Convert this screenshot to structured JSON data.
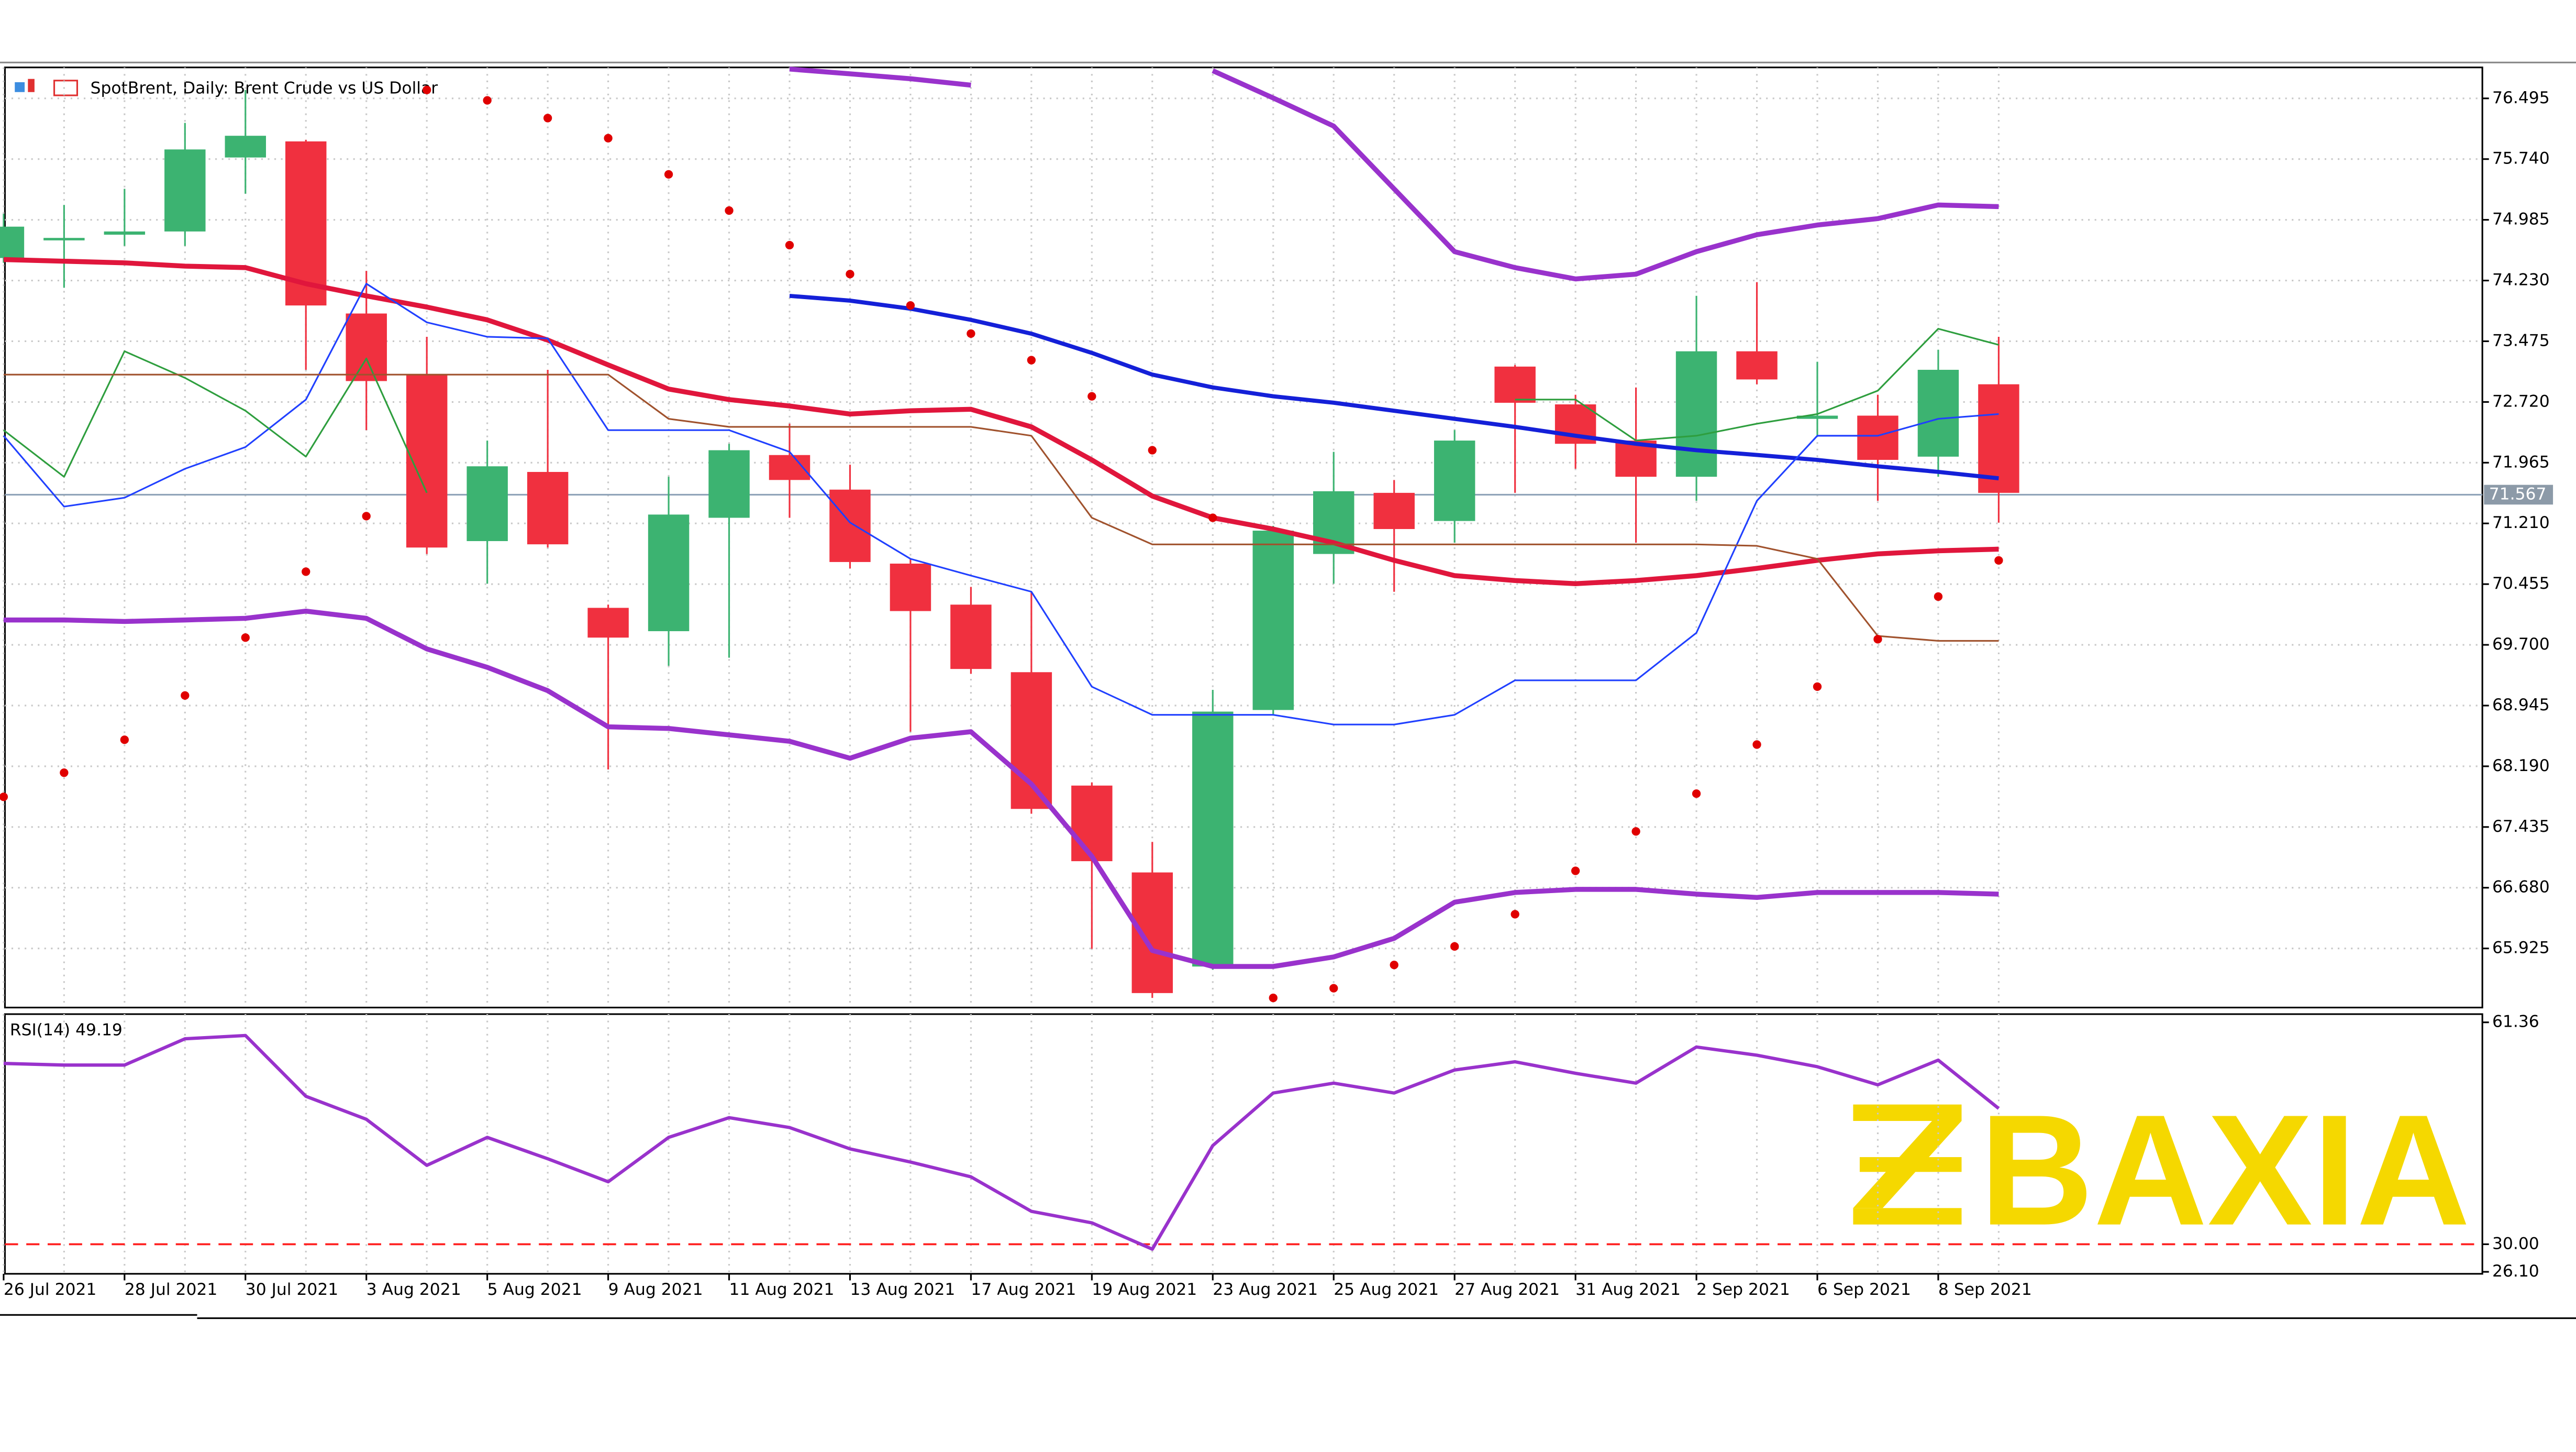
{
  "chart_data": [
    {
      "type": "candlestick",
      "title": "SpotBrent, Daily:  Brent Crude vs US Dollar",
      "categories": [
        "26 Jul 2021",
        null,
        "28 Jul 2021",
        null,
        "30 Jul 2021",
        null,
        "3 Aug 2021",
        null,
        "5 Aug 2021",
        null,
        "9 Aug 2021",
        null,
        "11 Aug 2021",
        null,
        "13 Aug 2021",
        null,
        "17 Aug 2021",
        null,
        "19 Aug 2021",
        null,
        "23 Aug 2021",
        null,
        "25 Aug 2021",
        null,
        "27 Aug 2021",
        null,
        "31 Aug 2021",
        null,
        "2 Sep 2021",
        null,
        "6 Sep 2021",
        null,
        "8 Sep 2021",
        null
      ],
      "open": [
        74.51,
        74.74,
        74.8,
        74.84,
        75.76,
        75.96,
        73.82,
        73.06,
        70.99,
        71.85,
        70.16,
        69.87,
        71.28,
        72.06,
        71.63,
        70.71,
        70.2,
        69.36,
        67.95,
        66.87,
        65.7,
        68.89,
        70.83,
        71.59,
        71.24,
        73.16,
        72.69,
        72.24,
        71.79,
        73.35,
        72.51,
        72.55,
        72.04,
        72.94
      ],
      "high": [
        75.06,
        75.17,
        75.37,
        76.19,
        76.6,
        75.98,
        74.35,
        73.53,
        72.24,
        73.12,
        70.2,
        71.79,
        72.2,
        72.45,
        71.94,
        70.77,
        70.42,
        70.36,
        67.99,
        67.25,
        69.14,
        71.18,
        72.1,
        71.75,
        72.37,
        73.18,
        72.81,
        72.9,
        74.04,
        74.21,
        73.22,
        72.81,
        73.37,
        73.53
      ],
      "low": [
        74.45,
        74.14,
        74.66,
        74.66,
        75.31,
        73.12,
        72.37,
        70.83,
        70.46,
        70.91,
        68.15,
        69.44,
        69.54,
        71.28,
        70.65,
        68.62,
        69.34,
        67.6,
        65.92,
        65.31,
        65.66,
        68.83,
        70.46,
        70.36,
        70.97,
        71.59,
        71.89,
        70.97,
        71.49,
        72.94,
        72.3,
        71.49,
        71.79,
        71.22
      ],
      "close": [
        74.9,
        74.76,
        74.84,
        75.86,
        76.03,
        73.92,
        72.98,
        70.91,
        71.92,
        70.95,
        69.79,
        71.32,
        72.12,
        71.75,
        70.73,
        70.12,
        69.4,
        67.66,
        67.01,
        65.37,
        68.87,
        71.12,
        71.61,
        71.14,
        72.24,
        72.71,
        72.2,
        71.79,
        73.35,
        73.0,
        72.55,
        72.0,
        73.12,
        71.59
      ],
      "up_color": "#3cb371",
      "down_color": "#f0303f",
      "series": [
        {
          "color": "#9932cc",
          "width": 3,
          "values": [
            null,
            null,
            null,
            null,
            null,
            null,
            null,
            null,
            null,
            null,
            null,
            null,
            null,
            76.86,
            76.8,
            76.74,
            76.66,
            null,
            null,
            null,
            76.84,
            76.5,
            76.15,
            75.37,
            74.59,
            74.39,
            74.25,
            74.31,
            74.59,
            74.8,
            74.92,
            75.0,
            75.17,
            75.15
          ]
        },
        {
          "color": "#9932cc",
          "width": 3,
          "values": [
            70.01,
            70.01,
            69.99,
            70.01,
            70.03,
            70.12,
            70.03,
            69.65,
            69.42,
            69.13,
            68.68,
            68.66,
            68.58,
            68.5,
            68.29,
            68.54,
            68.62,
            67.97,
            67.07,
            65.9,
            65.7,
            65.7,
            65.82,
            66.05,
            66.5,
            66.62,
            66.66,
            66.66,
            66.6,
            66.56,
            66.62,
            66.62,
            66.62,
            66.6
          ]
        },
        {
          "color": "#e0163c",
          "width": 3,
          "values": [
            74.49,
            74.47,
            74.45,
            74.41,
            74.39,
            74.19,
            74.04,
            73.9,
            73.74,
            73.49,
            73.18,
            72.88,
            72.75,
            72.67,
            72.57,
            72.61,
            72.63,
            72.41,
            72.0,
            71.55,
            71.28,
            71.14,
            70.97,
            70.75,
            70.56,
            70.5,
            70.46,
            70.5,
            70.56,
            70.65,
            70.75,
            70.83,
            70.87,
            70.89
          ]
        },
        {
          "color": "#1420d8",
          "width": 2.5,
          "values": [
            null,
            null,
            null,
            null,
            null,
            null,
            null,
            null,
            null,
            null,
            null,
            null,
            null,
            74.04,
            73.98,
            73.88,
            73.74,
            73.57,
            73.33,
            73.06,
            72.9,
            72.79,
            72.71,
            72.61,
            72.51,
            72.41,
            72.3,
            72.2,
            72.12,
            72.06,
            72.0,
            71.92,
            71.85,
            71.77
          ]
        },
        {
          "color": "#2040ff",
          "width": 1,
          "values": [
            72.3,
            71.42,
            71.53,
            71.89,
            72.16,
            72.75,
            74.19,
            73.71,
            73.53,
            73.51,
            72.37,
            72.37,
            72.37,
            72.1,
            71.22,
            70.77,
            70.56,
            70.36,
            69.18,
            68.83,
            68.83,
            68.83,
            68.71,
            68.71,
            68.83,
            69.26,
            69.26,
            69.26,
            69.85,
            71.49,
            72.3,
            72.3,
            72.51,
            72.57
          ]
        },
        {
          "color": "#2e9e3e",
          "width": 1,
          "values": [
            72.37,
            71.79,
            73.35,
            73.02,
            72.61,
            72.04,
            73.26,
            71.59,
            null,
            null,
            null,
            null,
            null,
            null,
            null,
            null,
            null,
            null,
            null,
            null,
            null,
            null,
            null,
            null,
            null,
            72.75,
            72.75,
            72.24,
            72.3,
            72.45,
            72.57,
            72.86,
            73.63,
            73.43
          ]
        },
        {
          "color": "#a0522d",
          "width": 1,
          "values": [
            73.06,
            73.06,
            73.06,
            73.06,
            73.06,
            73.06,
            73.06,
            73.06,
            73.06,
            73.06,
            73.06,
            72.51,
            72.41,
            72.41,
            72.41,
            72.41,
            72.41,
            72.3,
            71.28,
            70.95,
            70.95,
            70.95,
            70.95,
            70.95,
            70.95,
            70.95,
            70.95,
            70.95,
            70.95,
            70.93,
            70.77,
            69.81,
            69.75,
            69.75
          ]
        },
        {
          "color": "#e00000",
          "marker": "dot",
          "values": [
            67.81,
            68.11,
            68.52,
            69.07,
            69.79,
            70.61,
            71.3,
            76.6,
            76.47,
            76.25,
            76.0,
            75.55,
            75.1,
            74.67,
            74.31,
            73.92,
            73.57,
            73.24,
            72.79,
            72.12,
            71.28,
            65.31,
            65.43,
            65.72,
            65.95,
            66.35,
            66.89,
            67.38,
            67.85,
            68.46,
            69.18,
            69.77,
            70.3,
            70.75
          ]
        }
      ],
      "last_price": 71.567,
      "ylim": [
        65.19,
        76.88
      ],
      "yticks": [
        76.495,
        {
          "value": 75.74,
          "label": "75.740"
        },
        74.985,
        {
          "value": 74.23,
          "label": "74.230"
        },
        73.475,
        {
          "value": 72.72,
          "label": "72.720"
        },
        71.965,
        {
          "value": 71.21,
          "label": "71.210"
        },
        70.455,
        {
          "value": 69.7,
          "label": "69.700"
        },
        68.945,
        {
          "value": 68.19,
          "label": "68.190"
        },
        67.435,
        {
          "value": 66.68,
          "label": "66.680"
        },
        65.925
      ],
      "grid": true,
      "watermark": "BAXIA"
    },
    {
      "type": "line",
      "title": "RSI(14) 49.19",
      "series": [
        {
          "color": "#9932cc",
          "values": [
            55.55,
            55.32,
            55.32,
            59.04,
            59.5,
            50.91,
            47.65,
            41.15,
            45.1,
            42.08,
            38.83,
            45.1,
            47.89,
            46.49,
            43.47,
            41.62,
            39.52,
            34.65,
            33.02,
            29.3,
            43.94,
            51.37,
            52.77,
            51.37,
            54.62,
            55.79,
            54.16,
            52.77,
            57.88,
            56.71,
            55.09,
            52.53,
            56.02,
            49.19
          ]
        }
      ],
      "ylim": [
        25.82,
        62.52
      ],
      "yticks": [
        61.36,
        {
          "value": 30,
          "label": "30.00"
        },
        {
          "value": 26.1,
          "label": "26.10"
        }
      ],
      "level": {
        "value": 30,
        "color": "#ff2020"
      }
    }
  ]
}
